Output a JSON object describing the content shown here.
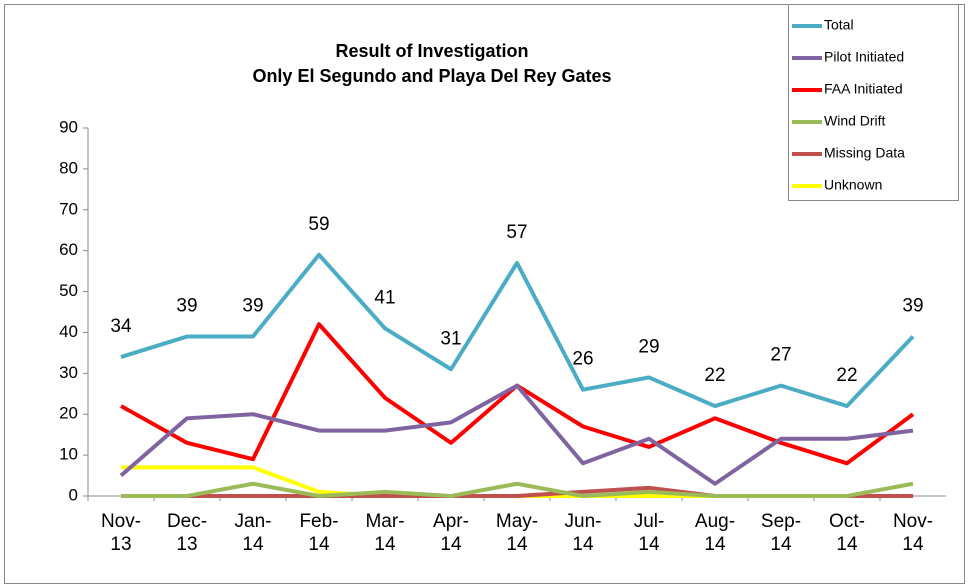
{
  "chart_data": {
    "type": "line",
    "title": "Result of Investigation",
    "subtitle": "Only El Segundo and Playa Del Rey Gates",
    "categories": [
      "Nov-13",
      "Dec-13",
      "Jan-14",
      "Feb-14",
      "Mar-14",
      "Apr-14",
      "May-14",
      "Jun-14",
      "Jul-14",
      "Aug-14",
      "Sep-14",
      "Oct-14",
      "Nov-14"
    ],
    "series": [
      {
        "name": "Total",
        "color": "#4bacc6",
        "labels": true,
        "values": [
          34,
          39,
          39,
          59,
          41,
          31,
          57,
          26,
          29,
          22,
          27,
          22,
          39
        ]
      },
      {
        "name": "Pilot Initiated",
        "color": "#8064a2",
        "values": [
          5,
          19,
          20,
          16,
          16,
          18,
          27,
          8,
          14,
          3,
          14,
          14,
          16
        ]
      },
      {
        "name": "FAA Initiated",
        "color": "#ff0000",
        "values": [
          22,
          13,
          9,
          42,
          24,
          13,
          27,
          17,
          12,
          19,
          13,
          8,
          20
        ]
      },
      {
        "name": "Wind Drift",
        "color": "#9bbb59",
        "values": [
          0,
          0,
          3,
          0,
          1,
          0,
          3,
          0,
          1,
          0,
          0,
          0,
          3
        ]
      },
      {
        "name": "Missing Data",
        "color": "#c0504d",
        "values": [
          0,
          0,
          0,
          0,
          0,
          0,
          0,
          1,
          2,
          0,
          0,
          0,
          0
        ]
      },
      {
        "name": "Unknown",
        "color": "#ffff00",
        "values": [
          7,
          7,
          7,
          1,
          0,
          0,
          0,
          0,
          0,
          0,
          0,
          0,
          0
        ]
      }
    ],
    "ylim": [
      0,
      90
    ],
    "yticks": [
      0,
      10,
      20,
      30,
      40,
      50,
      60,
      70,
      80,
      90
    ],
    "legend": "top-right"
  }
}
